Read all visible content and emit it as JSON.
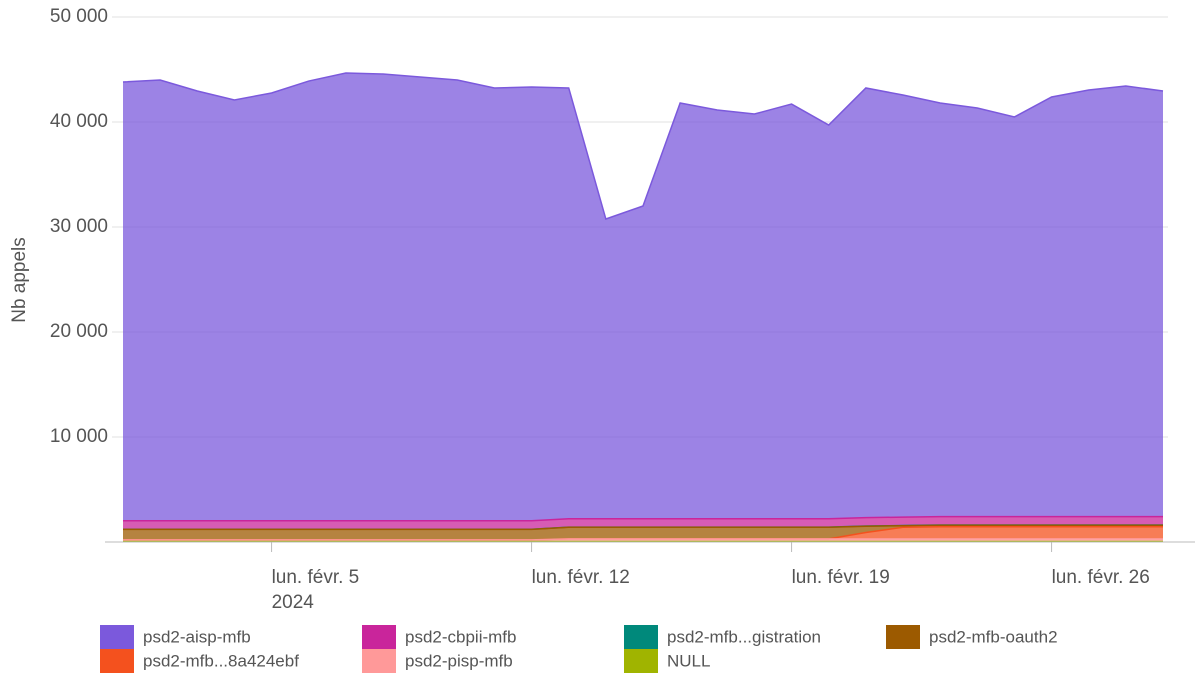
{
  "chart_data": {
    "type": "area",
    "stacked": true,
    "y_label": "Nb appels",
    "x": [
      "2024-02-01",
      "2024-02-02",
      "2024-02-03",
      "2024-02-04",
      "2024-02-05",
      "2024-02-06",
      "2024-02-07",
      "2024-02-08",
      "2024-02-09",
      "2024-02-10",
      "2024-02-11",
      "2024-02-12",
      "2024-02-13",
      "2024-02-14",
      "2024-02-15",
      "2024-02-16",
      "2024-02-17",
      "2024-02-18",
      "2024-02-19",
      "2024-02-20",
      "2024-02-21",
      "2024-02-22",
      "2024-02-23",
      "2024-02-24",
      "2024-02-25",
      "2024-02-26",
      "2024-02-27",
      "2024-02-28",
      "2024-02-29"
    ],
    "xticks": [
      {
        "value": "2024-02-05",
        "label": "lun. févr. 5"
      },
      {
        "value": "2024-02-12",
        "label": "lun. févr. 12"
      },
      {
        "value": "2024-02-19",
        "label": "lun. févr. 19"
      },
      {
        "value": "2024-02-26",
        "label": "lun. févr. 26"
      }
    ],
    "x_year_label": "2024",
    "ylim": [
      0,
      50000
    ],
    "yticks": [
      {
        "value": 10000,
        "label": "10 000"
      },
      {
        "value": 20000,
        "label": "20 000"
      },
      {
        "value": 30000,
        "label": "30 000"
      },
      {
        "value": 40000,
        "label": "40 000"
      },
      {
        "value": 50000,
        "label": "50 000"
      }
    ],
    "grid": true,
    "legend": "bottom",
    "series": [
      {
        "name": "psd2-aisp-mfb",
        "color": "#7b59dc",
        "values": [
          41790,
          41980,
          40930,
          40080,
          40740,
          41880,
          42650,
          42550,
          42270,
          41980,
          41220,
          41310,
          41020,
          28540,
          29780,
          39590,
          38920,
          38540,
          39490,
          37490,
          40920,
          40200,
          39390,
          38910,
          38060,
          39960,
          40630,
          41010,
          40530
        ]
      },
      {
        "name": "psd2-cbpii-mfb",
        "color": "#c9259b",
        "values": [
          800,
          800,
          800,
          800,
          800,
          800,
          800,
          800,
          800,
          800,
          800,
          800,
          800,
          800,
          800,
          800,
          800,
          800,
          800,
          800,
          800,
          800,
          800,
          800,
          800,
          800,
          800,
          800,
          800
        ]
      },
      {
        "name": "psd2-mfb...gistration",
        "color": "#00897b",
        "values": [
          20,
          20,
          20,
          20,
          20,
          20,
          20,
          20,
          20,
          20,
          20,
          20,
          20,
          20,
          20,
          20,
          20,
          20,
          20,
          20,
          20,
          20,
          20,
          20,
          20,
          20,
          20,
          20,
          20
        ]
      },
      {
        "name": "psd2-mfb-oauth2",
        "color": "#9c5a00",
        "values": [
          1000,
          1000,
          1000,
          1000,
          1000,
          1000,
          1000,
          1000,
          1000,
          1000,
          1000,
          1000,
          1100,
          1100,
          1100,
          1100,
          1100,
          1100,
          1100,
          1100,
          600,
          150,
          150,
          150,
          150,
          150,
          150,
          150,
          150
        ]
      },
      {
        "name": "psd2-mfb...8a424ebf",
        "color": "#f4511e",
        "values": [
          0,
          0,
          0,
          0,
          0,
          0,
          0,
          0,
          0,
          0,
          0,
          0,
          0,
          0,
          0,
          0,
          0,
          0,
          0,
          0,
          600,
          1100,
          1150,
          1150,
          1150,
          1150,
          1150,
          1150,
          1150
        ]
      },
      {
        "name": "psd2-pisp-mfb",
        "color": "#ff9999",
        "values": [
          150,
          150,
          150,
          150,
          150,
          150,
          150,
          150,
          150,
          150,
          150,
          150,
          250,
          250,
          250,
          250,
          250,
          250,
          250,
          250,
          250,
          250,
          250,
          250,
          250,
          250,
          250,
          250,
          250
        ]
      },
      {
        "name": "NULL",
        "color": "#a0b400",
        "values": [
          50,
          50,
          50,
          50,
          50,
          50,
          50,
          50,
          50,
          50,
          50,
          50,
          50,
          50,
          50,
          50,
          50,
          50,
          50,
          50,
          50,
          50,
          50,
          50,
          50,
          50,
          50,
          50,
          50
        ]
      }
    ]
  }
}
